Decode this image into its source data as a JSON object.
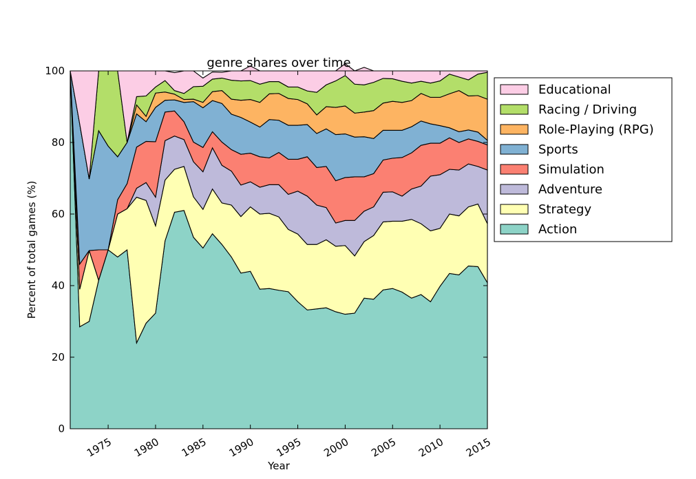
{
  "chart_data": {
    "type": "area",
    "stacked": true,
    "normalized_percent": true,
    "title": "genre shares over time",
    "xlabel": "Year",
    "ylabel": "Percent of total games (%)",
    "xlim": [
      1971,
      2015
    ],
    "ylim": [
      0,
      100
    ],
    "xticks": [
      1975,
      1980,
      1985,
      1990,
      1995,
      2000,
      2005,
      2010,
      2015
    ],
    "yticks": [
      0,
      20,
      40,
      60,
      80,
      100
    ],
    "grid": false,
    "legend": "outside-right",
    "legend_order": [
      "Educational",
      "Racing / Driving",
      "Role-Playing (RPG)",
      "Sports",
      "Simulation",
      "Adventure",
      "Strategy",
      "Action"
    ],
    "x": [
      1971,
      1972,
      1973,
      1974,
      1975,
      1976,
      1977,
      1978,
      1979,
      1980,
      1981,
      1982,
      1983,
      1984,
      1985,
      1986,
      1987,
      1988,
      1989,
      1990,
      1991,
      1992,
      1993,
      1994,
      1995,
      1996,
      1997,
      1998,
      1999,
      2000,
      2001,
      2002,
      2003,
      2004,
      2005,
      2006,
      2007,
      2008,
      2009,
      2010,
      2011,
      2012,
      2013,
      2014,
      2015
    ],
    "series": [
      {
        "name": "Action",
        "color": "#8dd3c7",
        "values": [
          100,
          28.5,
          30,
          41.5,
          50,
          48,
          50,
          24,
          29.5,
          32.3,
          52.5,
          60.5,
          61,
          53.5,
          50.5,
          54.5,
          51.5,
          48,
          43.5,
          44,
          39,
          39.2,
          38.7,
          38.3,
          35.5,
          33.2,
          33.5,
          33.8,
          32.7,
          32,
          32.3,
          36.5,
          36.2,
          38.8,
          39.2,
          38.2,
          36.5,
          37.5,
          35.5,
          39.8,
          43.4,
          43,
          45.5,
          45.3,
          40.8
        ]
      },
      {
        "name": "Strategy",
        "color": "#ffffb3",
        "values": [
          0,
          10.5,
          19.8,
          0,
          0,
          12,
          11.5,
          40.7,
          34.3,
          24.4,
          17,
          12,
          12.3,
          11.3,
          10.8,
          12.5,
          11.6,
          14.5,
          15.8,
          18,
          21,
          21,
          20.5,
          17.4,
          18.9,
          18.3,
          18,
          19,
          18.3,
          19.2,
          16,
          15.8,
          17.8,
          19,
          18.8,
          19.8,
          22,
          19.8,
          19.8,
          16.2,
          16.6,
          16.5,
          16.5,
          17.5,
          16.5
        ]
      },
      {
        "name": "Adventure",
        "color": "#bebada",
        "values": [
          0,
          0,
          0,
          0,
          0,
          0,
          0,
          2.5,
          5,
          8,
          11,
          9.3,
          7.5,
          9.8,
          10.5,
          11.5,
          10.5,
          9.5,
          8.8,
          7,
          7.5,
          8,
          9,
          9.8,
          12,
          13.5,
          11,
          9,
          6.5,
          7,
          9.9,
          8.5,
          8,
          8.3,
          8.2,
          7,
          8.5,
          10.5,
          15.3,
          15,
          12.5,
          12.8,
          12,
          10.5,
          15
        ]
      },
      {
        "name": "Simulation",
        "color": "#fb8072",
        "values": [
          0,
          7,
          0,
          8.5,
          0,
          4,
          7,
          11.5,
          11.5,
          15.5,
          8,
          7,
          5,
          5.5,
          6.8,
          4.5,
          6.5,
          6,
          8.6,
          8,
          8.5,
          7.5,
          9,
          9.8,
          8.9,
          11,
          10.5,
          11.5,
          11.8,
          12,
          12.2,
          9.6,
          9.3,
          9,
          9.4,
          10.8,
          10.1,
          11.4,
          9.2,
          8.8,
          8.8,
          7.7,
          7,
          7,
          7
        ]
      },
      {
        "name": "Sports",
        "color": "#80b1d3",
        "values": [
          0,
          39.2,
          20,
          33.3,
          29,
          12,
          11.5,
          9.3,
          5.5,
          9.6,
          3.3,
          3.1,
          5.4,
          11.3,
          11.1,
          8.7,
          10.8,
          9.9,
          10.3,
          8.7,
          8.3,
          10.7,
          9,
          9.5,
          9.5,
          9,
          9.5,
          10.5,
          12.9,
          12.2,
          11.1,
          11.2,
          9.8,
          8.3,
          7.8,
          7.6,
          7.3,
          6.8,
          5.4,
          4.9,
          2.8,
          3,
          2.5,
          2.6,
          1.3
        ]
      },
      {
        "name": "Role-Playing (RPG)",
        "color": "#fdb462",
        "values": [
          0,
          0,
          0,
          0,
          0,
          0,
          0,
          2.5,
          1.5,
          4,
          2.3,
          1.6,
          0.8,
          0.7,
          1.5,
          2.5,
          3.6,
          4.2,
          4.8,
          6.3,
          6.9,
          7.2,
          7.5,
          7.5,
          7.2,
          5.8,
          5.2,
          6.2,
          7.6,
          7.8,
          6.7,
          6.9,
          7.8,
          7.6,
          8.1,
          7.8,
          7.3,
          7.7,
          7.4,
          7.9,
          9.5,
          11.5,
          9.5,
          10.2,
          11.5
        ]
      },
      {
        "name": "Racing / Driving",
        "color": "#b3de69",
        "values": [
          0,
          0,
          0,
          16.7,
          21,
          24,
          0,
          2.3,
          5.7,
          1.7,
          3.2,
          1,
          1.7,
          3.5,
          4.5,
          3.5,
          3.5,
          5.3,
          5.4,
          5.3,
          5.1,
          3.4,
          3.3,
          3.2,
          3.5,
          3.6,
          6.3,
          6.1,
          7.4,
          8.5,
          8.1,
          7.6,
          7.9,
          6.9,
          6.3,
          5.9,
          4.9,
          3.4,
          4,
          4.6,
          5.5,
          3.8,
          4.5,
          6,
          7.5
        ]
      },
      {
        "name": "Educational",
        "color": "#fccde5",
        "values": [
          0,
          14.8,
          30.2,
          0,
          0,
          0,
          20,
          7.2,
          7,
          4.5,
          2.7,
          5,
          6.3,
          4.4,
          2.3,
          2,
          1.6,
          2.6,
          2.8,
          4.1,
          3.7,
          3,
          3,
          4.5,
          4.5,
          5.6,
          6,
          3.9,
          2.8,
          3.3,
          3.7,
          4.9,
          3.2,
          2.1,
          2.2,
          2.9,
          3.4,
          2.9,
          3.4,
          2.8,
          0.9,
          1.7,
          2.5,
          0.9,
          0.4
        ]
      }
    ]
  }
}
